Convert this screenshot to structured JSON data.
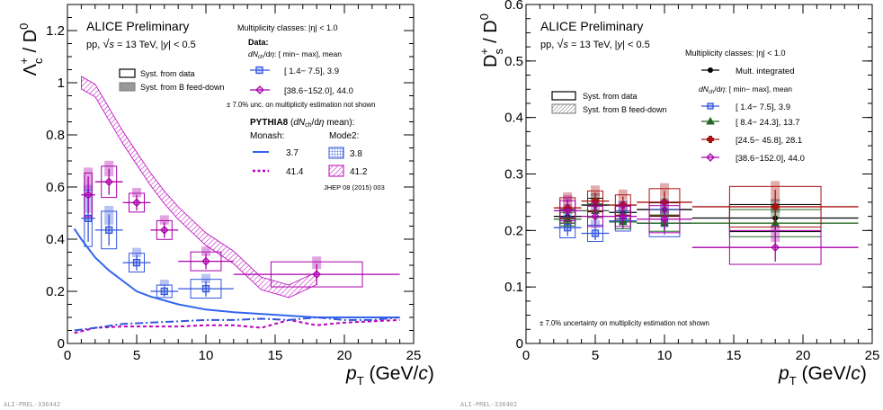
{
  "left": {
    "preliminary": "ALICE Preliminary",
    "collision": "pp, √s = 13 TeV, |y| < 0.5",
    "mult_title": "Multiplicity classes: |η| < 1.0",
    "data_title": "Data:",
    "dndeta_header": "dN_ch/dη: [ min− max], mean",
    "unc_note": "± 7.0% unc. on multiplicity estimation not shown",
    "pythia_title": "PYTHIA8 (dN_ch/dη mean):",
    "monash_label": "Monash:",
    "mode2_label": "Mode2:",
    "ref": "JHEP 08 (2015) 003",
    "syst_data": "Syst. from data",
    "syst_b": "Syst. from B feed-down",
    "ylabel": "Λc+ / D0",
    "xlabel": "pT (GeV/c)",
    "id": "ALI-PREL-336442",
    "legend_data": [
      "[ 1.4− 7.5], 3.9",
      "[38.6−152.0], 44.0"
    ],
    "legend_monash": [
      "3.7",
      "41.4"
    ],
    "legend_mode2": [
      "3.8",
      "41.2"
    ]
  },
  "right": {
    "preliminary": "ALICE Preliminary",
    "collision": "pp, √s = 13 TeV, |y| < 0.5",
    "mult_title": "Multiplicity classes: |η| < 1.0",
    "dndeta_header": "dN_ch/dη: [ min− max], mean",
    "unc_note": "± 7.0% uncertainty on multiplicity estimation not shown",
    "syst_data": "Syst. from data",
    "syst_b": "Syst. from B feed-down",
    "ylabel": "Ds+ / D0",
    "xlabel": "pT (GeV/c)",
    "id": "ALI-PREL-336402",
    "legend": [
      "Mult. integrated",
      "[ 1.4− 7.5], 3.9",
      "[ 8.4− 24.3], 13.7",
      "[24.5− 45.8], 28.1",
      "[38.6−152.0], 44.0"
    ]
  },
  "chart_data": [
    {
      "type": "scatter",
      "title": "",
      "xlabel": "pT (GeV/c)",
      "ylabel": "Λc+ / D0",
      "xlim": [
        0,
        25
      ],
      "ylim": [
        0,
        1.3
      ],
      "xticks": [
        "0",
        "5",
        "10",
        "15",
        "20",
        "25"
      ],
      "yticks": [
        "0",
        "0.2",
        "0.4",
        "0.6",
        "0.8",
        "1",
        "1.2"
      ],
      "series": [
        {
          "name": "[ 1.4− 7.5], 3.9",
          "color": "#3355dd",
          "marker": "square",
          "x": [
            1.5,
            3,
            5,
            7,
            10
          ],
          "xerr": [
            0.5,
            1,
            1,
            1,
            2
          ],
          "y": [
            0.48,
            0.435,
            0.31,
            0.2,
            0.21
          ],
          "yerr": [
            0.09,
            0.06,
            0.03,
            0.02,
            0.03
          ]
        },
        {
          "name": "[38.6−152.0], 44.0",
          "color": "#aa00aa",
          "marker": "diamond",
          "x": [
            1.5,
            3,
            5,
            7,
            10,
            18
          ],
          "xerr": [
            0.5,
            1,
            1,
            1,
            2,
            6
          ],
          "y": [
            0.57,
            0.62,
            0.54,
            0.435,
            0.315,
            0.265
          ],
          "yerr": [
            0.07,
            0.05,
            0.03,
            0.03,
            0.03,
            0.04
          ]
        },
        {
          "name": "3.7",
          "color": "#3366ee",
          "style": "solid",
          "x": [
            0.5,
            1,
            2,
            3,
            4,
            5,
            6,
            8,
            10,
            12,
            15,
            18,
            20,
            24
          ],
          "y": [
            0.44,
            0.4,
            0.33,
            0.28,
            0.24,
            0.2,
            0.18,
            0.15,
            0.13,
            0.12,
            0.11,
            0.1,
            0.1,
            0.1
          ]
        },
        {
          "name": "41.4",
          "color": "#bb00bb",
          "style": "dashed",
          "x": [
            0.5,
            2,
            4,
            6,
            8,
            10,
            12,
            14,
            16,
            18,
            20,
            22,
            24
          ],
          "y": [
            0.04,
            0.06,
            0.065,
            0.065,
            0.065,
            0.07,
            0.07,
            0.06,
            0.09,
            0.07,
            0.08,
            0.085,
            0.09
          ]
        },
        {
          "name": "3.8",
          "color": "#3355dd",
          "style": "dashdot",
          "x": [
            0.5,
            2,
            4,
            6,
            8,
            10,
            12,
            14,
            16,
            18,
            20,
            22,
            24
          ],
          "y": [
            0.05,
            0.06,
            0.075,
            0.08,
            0.085,
            0.09,
            0.09,
            0.095,
            0.09,
            0.1,
            0.09,
            0.09,
            0.1
          ]
        },
        {
          "name": "41.2",
          "color": "#bb00bb",
          "style": "band",
          "x": [
            1,
            2,
            3,
            4,
            5,
            6,
            7,
            8,
            9,
            10,
            12,
            14,
            16,
            18
          ],
          "y": [
            1.0,
            0.97,
            0.88,
            0.79,
            0.71,
            0.63,
            0.56,
            0.5,
            0.45,
            0.4,
            0.33,
            0.23,
            0.2,
            0.25
          ]
        }
      ]
    },
    {
      "type": "scatter",
      "title": "",
      "xlabel": "pT (GeV/c)",
      "ylabel": "Ds+ / D0",
      "xlim": [
        0,
        25
      ],
      "ylim": [
        0,
        0.6
      ],
      "xticks": [
        "0",
        "5",
        "10",
        "15",
        "20",
        "25"
      ],
      "yticks": [
        "0",
        "0.1",
        "0.2",
        "0.3",
        "0.4",
        "0.5",
        "0.6"
      ],
      "series": [
        {
          "name": "Mult. integrated",
          "color": "#000000",
          "marker": "circle",
          "x": [
            3,
            5,
            7,
            10,
            18
          ],
          "xerr": [
            1,
            1,
            1,
            2,
            6
          ],
          "y": [
            0.225,
            0.245,
            0.232,
            0.237,
            0.222
          ],
          "yerr": [
            0.01,
            0.01,
            0.01,
            0.01,
            0.02
          ]
        },
        {
          "name": "[ 1.4− 7.5], 3.9",
          "color": "#3355dd",
          "marker": "square",
          "x": [
            3,
            5,
            7,
            10
          ],
          "xerr": [
            1,
            1,
            1,
            2
          ],
          "y": [
            0.205,
            0.195,
            0.217,
            0.213
          ],
          "yerr": [
            0.015,
            0.012,
            0.015,
            0.02
          ]
        },
        {
          "name": "[ 8.4− 24.3], 13.7",
          "color": "#226622",
          "marker": "triangle",
          "x": [
            3,
            5,
            7,
            10,
            18
          ],
          "xerr": [
            1,
            1,
            1,
            2,
            6
          ],
          "y": [
            0.22,
            0.235,
            0.215,
            0.213,
            0.213
          ],
          "yerr": [
            0.01,
            0.01,
            0.01,
            0.012,
            0.02
          ]
        },
        {
          "name": "[24.5− 45.8], 28.1",
          "color": "#aa1111",
          "marker": "cross",
          "x": [
            3,
            5,
            7,
            10,
            18
          ],
          "xerr": [
            1,
            1,
            1,
            2,
            6
          ],
          "y": [
            0.24,
            0.252,
            0.245,
            0.25,
            0.242
          ],
          "yerr": [
            0.015,
            0.015,
            0.015,
            0.02,
            0.03
          ]
        },
        {
          "name": "[38.6−152.0], 44.0",
          "color": "#aa00aa",
          "marker": "diamond",
          "x": [
            3,
            5,
            7,
            10,
            18
          ],
          "xerr": [
            1,
            1,
            1,
            2,
            6
          ],
          "y": [
            0.235,
            0.225,
            0.225,
            0.22,
            0.17
          ],
          "yerr": [
            0.015,
            0.015,
            0.015,
            0.02,
            0.025
          ]
        }
      ]
    }
  ]
}
